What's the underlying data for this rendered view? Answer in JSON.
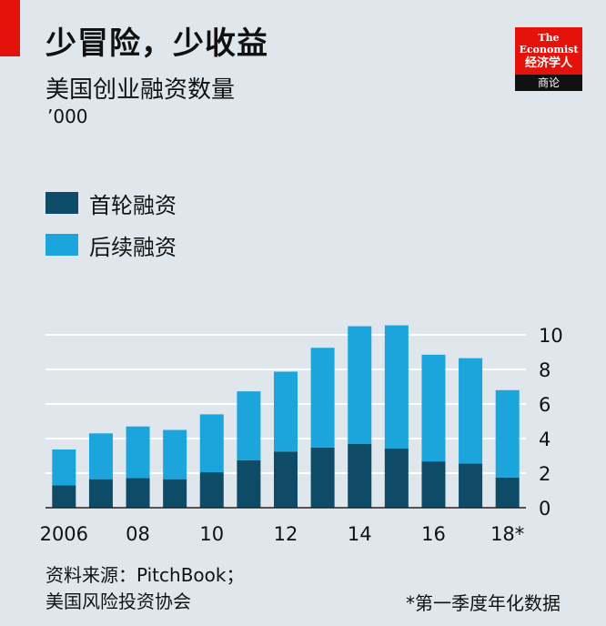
{
  "header": {
    "title": "少冒险，少收益",
    "subtitle": "美国创业融资数量",
    "unit": "’000"
  },
  "logo": {
    "line1": "The",
    "line2": "Economist",
    "line3": "经济学人",
    "tag": "商论"
  },
  "colors": {
    "first": "#0d4b66",
    "follow": "#1ca4dd",
    "grid": "#ffffff",
    "red": "#e3120b"
  },
  "legend": [
    {
      "label": "首轮融资",
      "color": "#0d4b66"
    },
    {
      "label": "后续融资",
      "color": "#1ca4dd"
    }
  ],
  "chart_data": {
    "type": "bar",
    "stacked": true,
    "categories": [
      "2006",
      "2007",
      "2008",
      "2009",
      "2010",
      "2011",
      "2012",
      "2013",
      "2014",
      "2015",
      "2016",
      "2017",
      "2018*"
    ],
    "x_tick_labels": [
      "2006",
      "",
      "08",
      "",
      "10",
      "",
      "12",
      "",
      "14",
      "",
      "16",
      "",
      "18*"
    ],
    "series": [
      {
        "name": "首轮融资",
        "values": [
          1.3,
          1.65,
          1.72,
          1.65,
          2.05,
          2.75,
          3.25,
          3.48,
          3.7,
          3.42,
          2.68,
          2.55,
          1.75
        ]
      },
      {
        "name": "后续融资",
        "values": [
          2.07,
          2.65,
          2.98,
          2.85,
          3.35,
          3.98,
          4.62,
          5.77,
          6.8,
          7.13,
          6.17,
          6.1,
          5.05
        ]
      }
    ],
    "ylim": [
      0,
      11
    ],
    "yticks": [
      0,
      2,
      4,
      6,
      8,
      10
    ],
    "y_axis_side": "right",
    "grid": true,
    "legend_position": "top-left"
  },
  "footer": {
    "source_line1": "资料来源：PitchBook；",
    "source_line2": "美国风险投资协会",
    "note": "*第一季度年化数据"
  }
}
